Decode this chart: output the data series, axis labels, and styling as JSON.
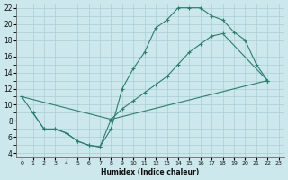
{
  "xlabel": "Humidex (Indice chaleur)",
  "background_color": "#cce8ec",
  "grid_color": "#aacdd4",
  "line_color": "#2d7d6e",
  "xlim": [
    -0.5,
    23.5
  ],
  "ylim": [
    3.5,
    22.5
  ],
  "xticks": [
    0,
    1,
    2,
    3,
    4,
    5,
    6,
    7,
    8,
    9,
    10,
    11,
    12,
    13,
    14,
    15,
    16,
    17,
    18,
    19,
    20,
    21,
    22,
    23
  ],
  "yticks": [
    4,
    6,
    8,
    10,
    12,
    14,
    16,
    18,
    20,
    22
  ],
  "line1_x": [
    0,
    1,
    2,
    3,
    4,
    5,
    6,
    7,
    8,
    9,
    10,
    11,
    12,
    13,
    14,
    15,
    16,
    17,
    18,
    19,
    20,
    21,
    22
  ],
  "line1_y": [
    11,
    9,
    7,
    7,
    6.5,
    5.5,
    5,
    4.8,
    7,
    12,
    14.5,
    16.5,
    19.5,
    20.5,
    22,
    22,
    22,
    21,
    20.5,
    19,
    18,
    15,
    13
  ],
  "line2_x": [
    1,
    2,
    3,
    4,
    5,
    6,
    7,
    8,
    22
  ],
  "line2_y": [
    9,
    7,
    7,
    6.5,
    5.5,
    5,
    4.8,
    8.2,
    13
  ],
  "line3_x": [
    0,
    8,
    9,
    10,
    11,
    12,
    13,
    14,
    15,
    16,
    17,
    18,
    22
  ],
  "line3_y": [
    11,
    8.2,
    9.5,
    10.5,
    11.5,
    12.5,
    13.5,
    15,
    16.5,
    17.5,
    18.5,
    18.8,
    13
  ]
}
